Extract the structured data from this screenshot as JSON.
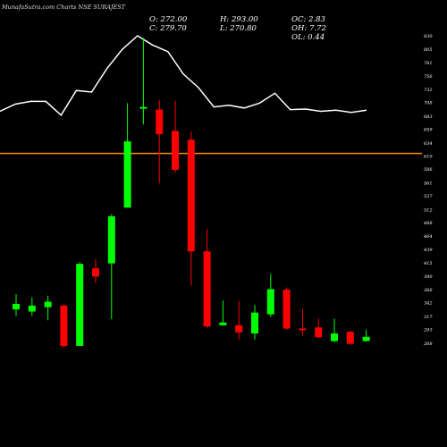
{
  "header": {
    "brand": "MunafaSutra.com",
    "title": "Charts NSE SURAJEST",
    "open": "O: 272.00",
    "high": "H: 293.00",
    "oc": "OC: 2.83",
    "close": "C: 279.70",
    "low": "L: 270.80",
    "oh": "OH: 7.72",
    "ol": "OL: 0.44"
  },
  "colors": {
    "background": "#000000",
    "up": "#00ff00",
    "down": "#ff0000",
    "line": "#ffffff",
    "hline": "#ff8c00"
  },
  "chart_data": {
    "type": "candlestick",
    "ylim": [
      250,
      830
    ],
    "y_ticks": [
      830,
      805,
      781,
      756,
      732,
      708,
      683,
      659,
      634,
      610,
      586,
      561,
      537,
      512,
      488,
      464,
      439,
      415,
      390,
      366,
      342,
      317,
      293,
      268
    ],
    "reference_line": 615,
    "candles": [
      {
        "open": 330,
        "close": 340,
        "high": 358,
        "low": 318
      },
      {
        "open": 326,
        "close": 337,
        "high": 352,
        "low": 318
      },
      {
        "open": 334,
        "close": 344,
        "high": 355,
        "low": 310
      },
      {
        "open": 337,
        "close": 263,
        "high": 339,
        "low": 260
      },
      {
        "open": 263,
        "close": 413,
        "high": 416,
        "low": 263
      },
      {
        "open": 405,
        "close": 390,
        "high": 422,
        "low": 378
      },
      {
        "open": 414,
        "close": 500,
        "high": 504,
        "low": 312
      },
      {
        "open": 516,
        "close": 637,
        "high": 707,
        "low": 516
      },
      {
        "open": 700,
        "close": 700,
        "high": 826,
        "low": 668
      },
      {
        "open": 695,
        "close": 650,
        "high": 712,
        "low": 560
      },
      {
        "open": 656,
        "close": 585,
        "high": 711,
        "low": 580
      },
      {
        "open": 640,
        "close": 436,
        "high": 655,
        "low": 373
      },
      {
        "open": 436,
        "close": 299,
        "high": 477,
        "low": 296
      },
      {
        "open": 301,
        "close": 306,
        "high": 346,
        "low": 300
      },
      {
        "open": 301,
        "close": 288,
        "high": 345,
        "low": 275
      },
      {
        "open": 286,
        "close": 324,
        "high": 338,
        "low": 275
      },
      {
        "open": 321,
        "close": 367,
        "high": 395,
        "low": 316
      },
      {
        "open": 366,
        "close": 295,
        "high": 370,
        "low": 293
      },
      {
        "open": 295,
        "close": 294,
        "high": 330,
        "low": 282
      },
      {
        "open": 297,
        "close": 279,
        "high": 313,
        "low": 277
      },
      {
        "open": 272,
        "close": 286,
        "high": 313,
        "low": 270
      },
      {
        "open": 289,
        "close": 267,
        "high": 291,
        "low": 265
      },
      {
        "open": 272,
        "close": 279.7,
        "high": 293,
        "low": 270.8
      }
    ],
    "line": [
      692,
      705,
      710,
      710,
      685,
      730,
      727,
      770,
      805,
      830,
      813,
      801,
      760,
      735,
      700,
      703,
      698,
      707,
      725,
      695,
      696,
      692,
      694,
      690,
      694
    ]
  }
}
